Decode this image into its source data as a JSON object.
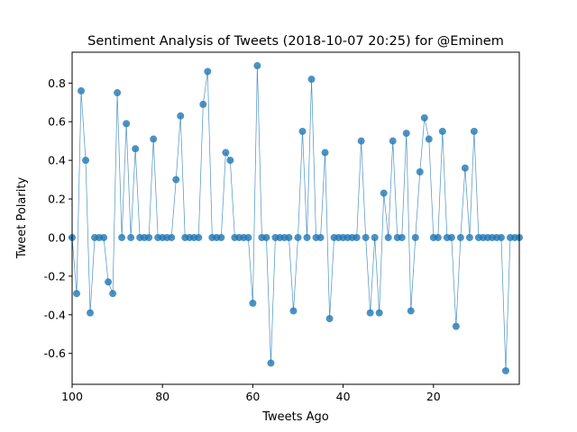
{
  "chart_data": {
    "type": "scatter",
    "title": "Sentiment Analysis of Tweets (2018-10-07 20:25) for @Eminem",
    "xlabel": "Tweets Ago",
    "ylabel": "Tweet Polarity",
    "xlim": [
      100,
      1
    ],
    "ylim": [
      -0.76,
      0.96
    ],
    "xticks": [
      100,
      80,
      60,
      40,
      20
    ],
    "yticks": [
      -0.6,
      -0.4,
      -0.2,
      0.0,
      0.2,
      0.4,
      0.6,
      0.8
    ],
    "grid": false,
    "legend": "none",
    "marker_color": "#1f77b4",
    "line_color": "#1f77b4",
    "series": [
      {
        "x": [
          100,
          99,
          98,
          97,
          96,
          95,
          94,
          93,
          92,
          91,
          90,
          89,
          88,
          87,
          86,
          85,
          84,
          83,
          82,
          81,
          80,
          79,
          78,
          77,
          76,
          75,
          74,
          73,
          72,
          71,
          70,
          69,
          68,
          67,
          66,
          65,
          64,
          63,
          62,
          61,
          60,
          59,
          58,
          57,
          56,
          55,
          54,
          53,
          52,
          51,
          50,
          49,
          48,
          47,
          46,
          45,
          44,
          43,
          42,
          41,
          40,
          39,
          38,
          37,
          36,
          35,
          34,
          33,
          32,
          31,
          30,
          29,
          28,
          27,
          26,
          25,
          24,
          23,
          22,
          21,
          20,
          19,
          18,
          17,
          16,
          15,
          14,
          13,
          12,
          11,
          10,
          9,
          8,
          7,
          6,
          5,
          4,
          3,
          2,
          1
        ],
        "y": [
          0.0,
          -0.29,
          0.76,
          0.4,
          -0.39,
          0.0,
          0.0,
          0.0,
          -0.23,
          -0.29,
          0.75,
          0.0,
          0.59,
          0.0,
          0.46,
          0.0,
          0.0,
          0.0,
          0.51,
          0.0,
          0.0,
          0.0,
          0.0,
          0.3,
          0.63,
          0.0,
          0.0,
          0.0,
          0.0,
          0.69,
          0.86,
          0.0,
          0.0,
          0.0,
          0.44,
          0.4,
          0.0,
          0.0,
          0.0,
          0.0,
          -0.34,
          0.89,
          0.0,
          0.0,
          -0.65,
          0.0,
          0.0,
          0.0,
          0.0,
          -0.38,
          0.0,
          0.55,
          0.0,
          0.82,
          0.0,
          0.0,
          0.44,
          -0.42,
          0.0,
          0.0,
          0.0,
          0.0,
          0.0,
          0.0,
          0.5,
          0.0,
          -0.39,
          0.0,
          -0.39,
          0.23,
          0.0,
          0.5,
          0.0,
          0.0,
          0.54,
          -0.38,
          0.0,
          0.34,
          0.62,
          0.51,
          0.0,
          0.0,
          0.55,
          0.0,
          0.0,
          -0.46,
          0.0,
          0.36,
          0.0,
          0.55,
          0.0,
          0.0,
          0.0,
          0.0,
          0.0,
          0.0,
          -0.69,
          0.0,
          0.0,
          0.0
        ]
      }
    ]
  }
}
